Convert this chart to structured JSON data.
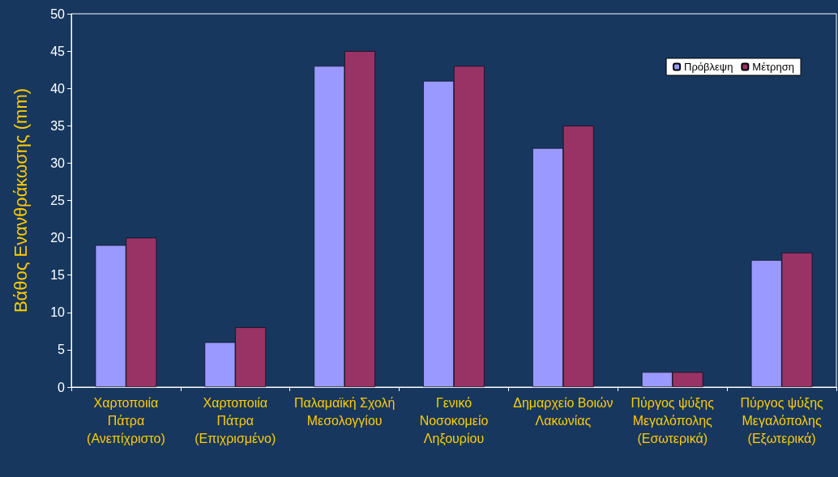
{
  "chart_data": {
    "type": "bar",
    "ylabel": "Βάθος Ενανθράκωσης (mm)",
    "categories": [
      "Χαρτοποιία Πάτρα (Ανεπίχριστο)",
      "Χαρτοποιία Πάτρα (Επιχρισμένο)",
      "Παλαμαϊκή Σχολή Μεσολογγίου",
      "Γενικό Νοσοκομείο Ληξουρίου",
      "Δημαρχείο Βοιών Λακωνίας",
      "Πύργος ψύξης Μεγαλόπολης (Εσωτερικά)",
      "Πύργος ψύξης Μεγαλόπολης (Εξωτερικά)"
    ],
    "series": [
      {
        "name": "Πρόβλεψη",
        "color": "#9999ff",
        "values": [
          19,
          6,
          43,
          41,
          32,
          2,
          17
        ]
      },
      {
        "name": "Μέτρηση",
        "color": "#993366",
        "values": [
          20,
          8,
          45,
          43,
          35,
          2,
          18
        ]
      }
    ],
    "ylim": [
      0,
      50
    ],
    "yticks": [
      0,
      5,
      10,
      15,
      20,
      25,
      30,
      35,
      40,
      45,
      50
    ],
    "grid": false,
    "legend": "top right"
  }
}
